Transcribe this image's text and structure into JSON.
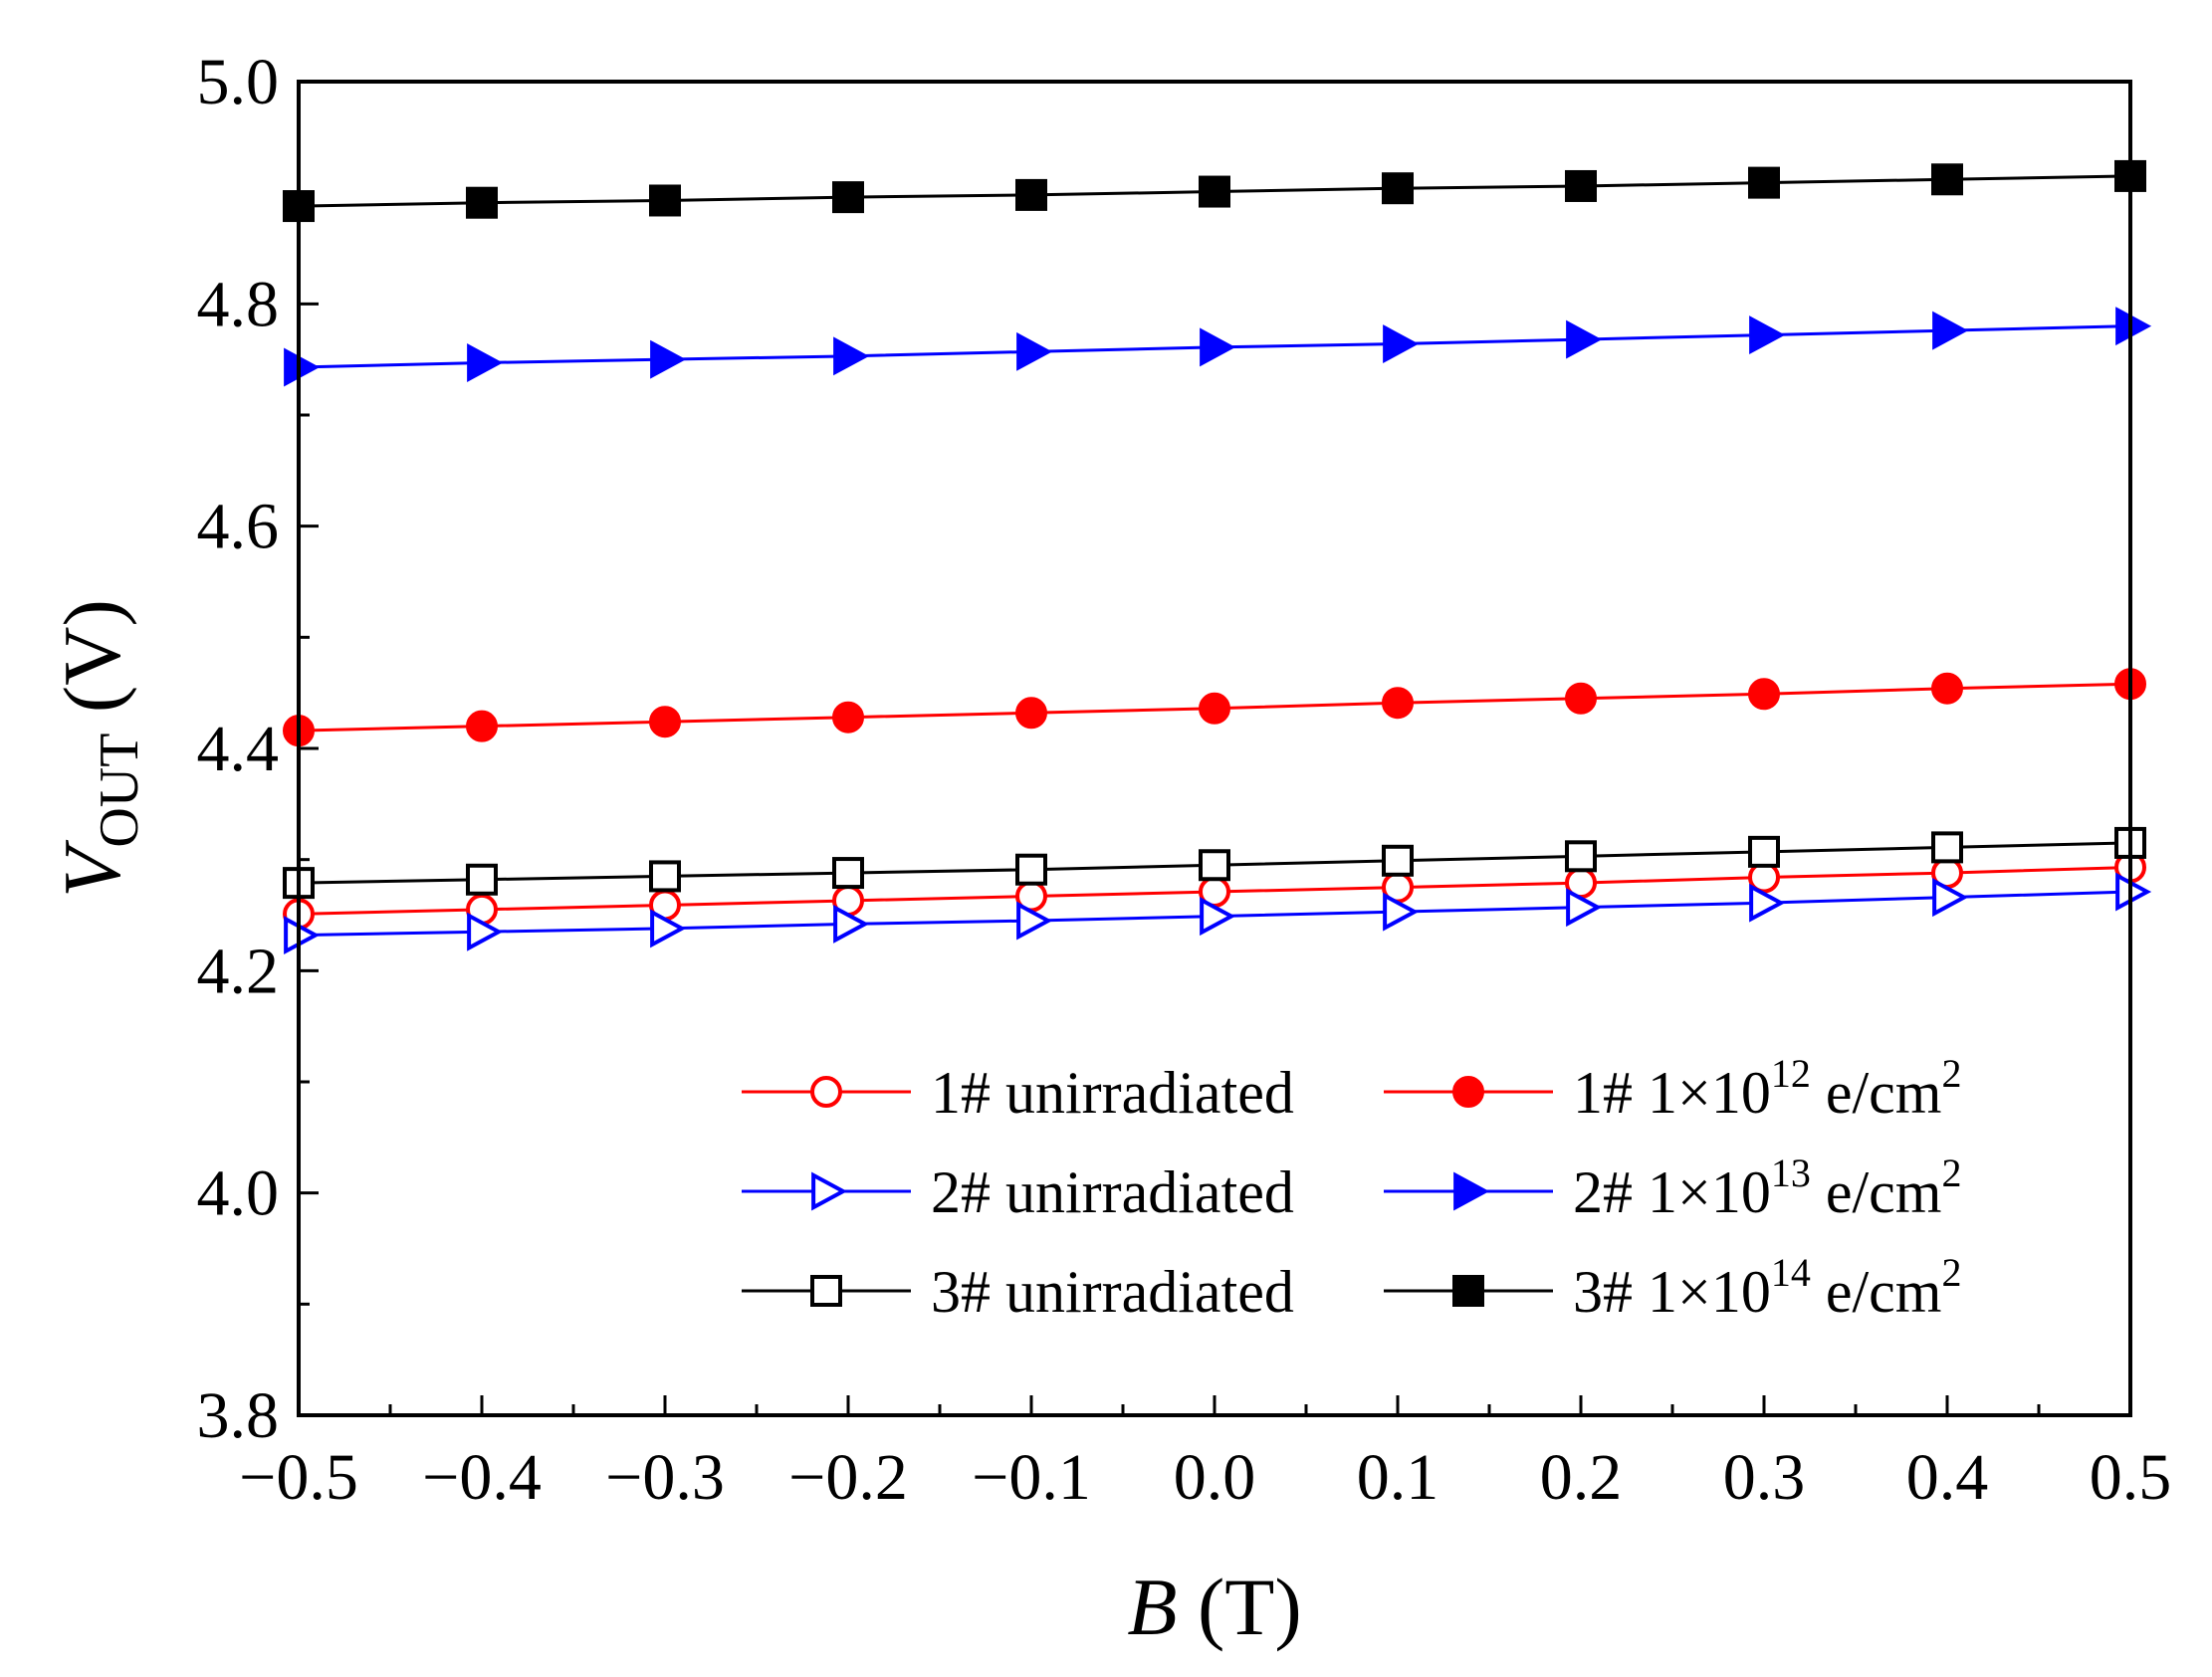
{
  "chart_data": {
    "type": "line",
    "xlabel": {
      "var": "B",
      "unit": " (T)"
    },
    "ylabel": {
      "var": "V",
      "sub": "OUT",
      "unit": " (V)"
    },
    "xlim": [
      -0.5,
      0.5
    ],
    "ylim": [
      3.8,
      5.0
    ],
    "xticks": [
      -0.5,
      -0.4,
      -0.3,
      -0.2,
      -0.1,
      0.0,
      0.1,
      0.2,
      0.3,
      0.4,
      0.5
    ],
    "xtick_labels": [
      "−0.5",
      "−0.4",
      "−0.3",
      "−0.2",
      "−0.1",
      "0.0",
      "0.1",
      "0.2",
      "0.3",
      "0.4",
      "0.5"
    ],
    "yticks": [
      3.8,
      4.0,
      4.2,
      4.4,
      4.6,
      4.8,
      5.0
    ],
    "ytick_labels": [
      "3.8",
      "4.0",
      "4.2",
      "4.4",
      "4.6",
      "4.8",
      "5.0"
    ],
    "legend_position": "lower-right",
    "x": [
      -0.5,
      -0.4,
      -0.3,
      -0.2,
      -0.1,
      0.0,
      0.1,
      0.2,
      0.3,
      0.4,
      0.5
    ],
    "series": [
      {
        "name": "1# unirradiated",
        "color": "#ff0000",
        "marker": "circle",
        "filled": false,
        "values": [
          4.251,
          4.255,
          4.259,
          4.263,
          4.267,
          4.271,
          4.275,
          4.279,
          4.284,
          4.288,
          4.293
        ]
      },
      {
        "name": "1# 1×10",
        "sup": "12",
        "tail": " e/cm",
        "tail_sup": "2",
        "color": "#ff0000",
        "marker": "circle",
        "filled": true,
        "values": [
          4.416,
          4.42,
          4.424,
          4.428,
          4.432,
          4.436,
          4.441,
          4.445,
          4.449,
          4.454,
          4.458
        ]
      },
      {
        "name": "2# unirradiated",
        "color": "#0000ff",
        "marker": "triangle-right",
        "filled": false,
        "values": [
          4.232,
          4.235,
          4.238,
          4.242,
          4.245,
          4.249,
          4.253,
          4.257,
          4.261,
          4.266,
          4.271
        ]
      },
      {
        "name": "2# 1×10",
        "sup": "13",
        "tail": " e/cm",
        "tail_sup": "2",
        "color": "#0000ff",
        "marker": "triangle-right",
        "filled": true,
        "values": [
          4.743,
          4.747,
          4.75,
          4.753,
          4.757,
          4.761,
          4.764,
          4.768,
          4.772,
          4.776,
          4.78
        ]
      },
      {
        "name": "3# unirradiated",
        "color": "#000000",
        "marker": "square",
        "filled": false,
        "values": [
          4.279,
          4.282,
          4.285,
          4.288,
          4.291,
          4.295,
          4.299,
          4.303,
          4.307,
          4.311,
          4.315
        ]
      },
      {
        "name": "3# 1×10",
        "sup": "14",
        "tail": " e/cm",
        "tail_sup": "2",
        "color": "#000000",
        "marker": "square",
        "filled": true,
        "values": [
          4.888,
          4.891,
          4.893,
          4.896,
          4.898,
          4.901,
          4.904,
          4.906,
          4.909,
          4.912,
          4.915
        ]
      }
    ]
  }
}
